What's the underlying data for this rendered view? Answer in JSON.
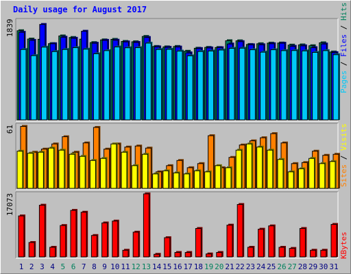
{
  "title": "Daily usage for August 2017",
  "colors": {
    "hits": "#00805c",
    "files": "#0000ff",
    "pages": "#00c8f8",
    "visits": "#ffff00",
    "sites": "#ff8000",
    "kbytes": "#ff0000",
    "weekend": "#00805c",
    "weekday": "#000080",
    "panel": "#c0c0c0"
  },
  "chart_data": [
    {
      "type": "bar",
      "panel": "top",
      "ymax_label": "1839",
      "ylim": [
        0,
        1839
      ],
      "legend": [
        "Pages",
        "Files",
        "Hits"
      ],
      "categories": [
        "1",
        "2",
        "3",
        "4",
        "5",
        "6",
        "7",
        "8",
        "9",
        "10",
        "11",
        "12",
        "13",
        "14",
        "15",
        "16",
        "17",
        "18",
        "19",
        "20",
        "21",
        "22",
        "23",
        "24",
        "25",
        "26",
        "27",
        "28",
        "29",
        "30",
        "31"
      ],
      "weekend_days": [
        "5",
        "6",
        "12",
        "13",
        "19",
        "20",
        "26",
        "27"
      ],
      "series": [
        {
          "name": "Hits",
          "values": [
            1710,
            1550,
            1545,
            1462,
            1610,
            1580,
            1548,
            1482,
            1534,
            1544,
            1504,
            1498,
            1600,
            1408,
            1400,
            1408,
            1316,
            1374,
            1390,
            1388,
            1518,
            1516,
            1446,
            1460,
            1472,
            1474,
            1434,
            1438,
            1422,
            1478,
            1302
          ]
        },
        {
          "name": "Files",
          "values": [
            1680,
            1525,
            1830,
            1460,
            1585,
            1565,
            1700,
            1470,
            1525,
            1528,
            1495,
            1485,
            1580,
            1400,
            1392,
            1397,
            1285,
            1368,
            1380,
            1384,
            1455,
            1500,
            1440,
            1440,
            1460,
            1470,
            1410,
            1420,
            1385,
            1455,
            1290
          ]
        },
        {
          "name": "Pages",
          "values": [
            1350,
            1232,
            1395,
            1310,
            1350,
            1385,
            1356,
            1268,
            1328,
            1398,
            1383,
            1385,
            1472,
            1350,
            1353,
            1319,
            1228,
            1312,
            1321,
            1340,
            1372,
            1375,
            1345,
            1298,
            1345,
            1328,
            1330,
            1323,
            1294,
            1328,
            1250
          ]
        }
      ]
    },
    {
      "type": "bar",
      "panel": "middle",
      "ymax_label": "61",
      "ylim": [
        0,
        61
      ],
      "legend": [
        "Sites",
        "Visits"
      ],
      "categories": [
        "1",
        "2",
        "3",
        "4",
        "5",
        "6",
        "7",
        "8",
        "9",
        "10",
        "11",
        "12",
        "13",
        "14",
        "15",
        "16",
        "17",
        "18",
        "19",
        "20",
        "21",
        "22",
        "23",
        "24",
        "25",
        "26",
        "27",
        "28",
        "29",
        "30",
        "31"
      ],
      "series": [
        {
          "name": "Sites",
          "values": [
            60,
            35,
            38,
            43,
            50,
            35,
            44,
            59,
            38,
            43,
            40,
            41,
            39,
            16,
            22,
            27,
            20,
            24,
            51,
            20,
            30,
            42,
            46,
            49,
            53,
            44,
            24,
            25,
            36,
            32,
            33
          ]
        },
        {
          "name": "Visits",
          "values": [
            36,
            34,
            35,
            39,
            37,
            33,
            31,
            27,
            29,
            43,
            35,
            22,
            33,
            14,
            17,
            15,
            14,
            17,
            16,
            22,
            20,
            37,
            43,
            40,
            37,
            28,
            16,
            19,
            29,
            24,
            26
          ]
        }
      ]
    },
    {
      "type": "bar",
      "panel": "bottom",
      "ymax_label": "17073",
      "ylim": [
        0,
        17073
      ],
      "legend": [
        "KBytes"
      ],
      "categories": [
        "1",
        "2",
        "3",
        "4",
        "5",
        "6",
        "7",
        "8",
        "9",
        "10",
        "11",
        "12",
        "13",
        "14",
        "15",
        "16",
        "17",
        "18",
        "19",
        "20",
        "21",
        "22",
        "23",
        "24",
        "25",
        "26",
        "27",
        "28",
        "29",
        "30",
        "31"
      ],
      "series": [
        {
          "name": "KBytes",
          "values": [
            11100,
            3900,
            14000,
            2600,
            8500,
            12600,
            12100,
            5800,
            9200,
            9700,
            1800,
            6700,
            17073,
            700,
            5200,
            1200,
            1200,
            7700,
            800,
            1200,
            8600,
            14200,
            2600,
            7500,
            8400,
            2600,
            2300,
            7700,
            1800,
            1800,
            8800
          ]
        }
      ]
    }
  ]
}
